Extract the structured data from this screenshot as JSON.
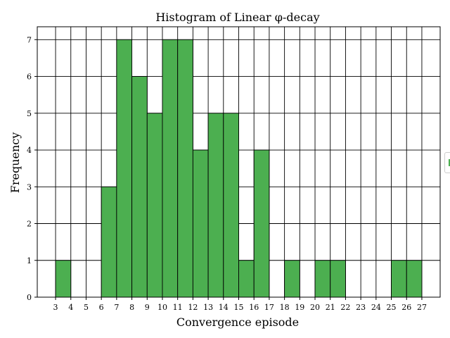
{
  "chart_data": {
    "type": "bar",
    "title": "Histogram of Linear φ-decay",
    "xlabel": "Convergence episode",
    "ylabel": "Frequency",
    "bar_color": "#4caf50",
    "edge_color": "#000000",
    "grid": true,
    "xlim": [
      1.8,
      28.2
    ],
    "ylim": [
      0,
      7.35
    ],
    "xticks": [
      3,
      4,
      5,
      6,
      7,
      8,
      9,
      10,
      11,
      12,
      13,
      14,
      15,
      16,
      17,
      18,
      19,
      20,
      21,
      22,
      23,
      24,
      25,
      26,
      27
    ],
    "yticks": [
      0,
      1,
      2,
      3,
      4,
      5,
      6,
      7
    ],
    "bins": [
      {
        "start": 3,
        "end": 4,
        "count": 1
      },
      {
        "start": 4,
        "end": 5,
        "count": 0
      },
      {
        "start": 5,
        "end": 6,
        "count": 0
      },
      {
        "start": 6,
        "end": 7,
        "count": 3
      },
      {
        "start": 7,
        "end": 8,
        "count": 7
      },
      {
        "start": 8,
        "end": 9,
        "count": 6
      },
      {
        "start": 9,
        "end": 10,
        "count": 5
      },
      {
        "start": 10,
        "end": 11,
        "count": 7
      },
      {
        "start": 11,
        "end": 12,
        "count": 7
      },
      {
        "start": 12,
        "end": 13,
        "count": 4
      },
      {
        "start": 13,
        "end": 14,
        "count": 5
      },
      {
        "start": 14,
        "end": 15,
        "count": 5
      },
      {
        "start": 15,
        "end": 16,
        "count": 1
      },
      {
        "start": 16,
        "end": 17,
        "count": 4
      },
      {
        "start": 17,
        "end": 18,
        "count": 0
      },
      {
        "start": 18,
        "end": 19,
        "count": 1
      },
      {
        "start": 19,
        "end": 20,
        "count": 0
      },
      {
        "start": 20,
        "end": 21,
        "count": 1
      },
      {
        "start": 21,
        "end": 22,
        "count": 1
      },
      {
        "start": 22,
        "end": 23,
        "count": 0
      },
      {
        "start": 23,
        "end": 24,
        "count": 0
      },
      {
        "start": 24,
        "end": 25,
        "count": 0
      },
      {
        "start": 25,
        "end": 26,
        "count": 1
      },
      {
        "start": 26,
        "end": 27,
        "count": 1
      }
    ]
  }
}
